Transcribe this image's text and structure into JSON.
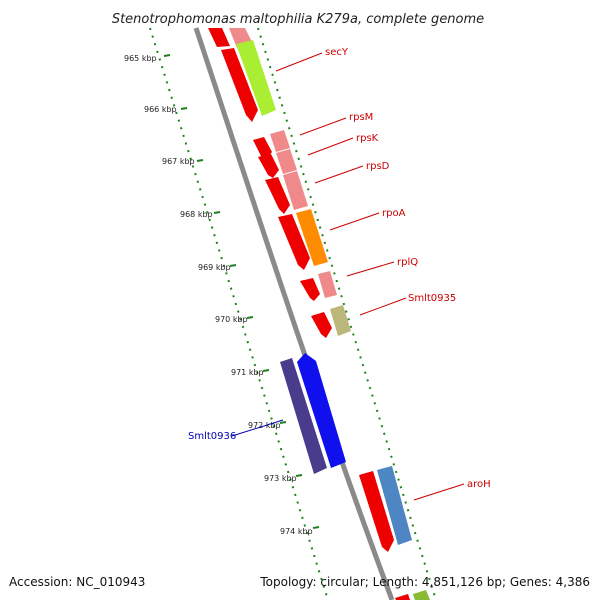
{
  "map": {
    "title": "Stenotrophomonas maltophilia K279a, complete genome",
    "accession": "Accession: NC_010943",
    "summary": "Topology: circular; Length: 4,851,126 bp; Genes: 4,386",
    "ticks": [
      "965 kbp",
      "966 kbp",
      "967 kbp",
      "968 kbp",
      "969 kbp",
      "970 kbp",
      "971 kbp",
      "972 kbp",
      "973 kbp",
      "974 kbp"
    ],
    "genes": [
      {
        "label": "secY",
        "color": "#cc0000"
      },
      {
        "label": "rpsM",
        "color": "#cc0000"
      },
      {
        "label": "rpsK",
        "color": "#cc0000"
      },
      {
        "label": "rpsD",
        "color": "#cc0000"
      },
      {
        "label": "rpoA",
        "color": "#cc0000"
      },
      {
        "label": "rplQ",
        "color": "#cc0000"
      },
      {
        "label": "Smlt0935",
        "color": "#cc0000"
      },
      {
        "label": "Smlt0936",
        "color": "#0000aa"
      },
      {
        "label": "aroH",
        "color": "#cc0000"
      }
    ],
    "colors": {
      "backbone": "#8a8a8a",
      "forward_cds": "#ee0000",
      "reverse_cds": "#1010ee",
      "reverse_cds_dark": "#4a3c8c",
      "ribosomal": "#f08a8a",
      "secY": "#aaee33",
      "rpoA": "#ff8c00",
      "Smlt0935": "#bbb77a",
      "aroH": "#4e86c4",
      "tick_green": "#208020"
    }
  }
}
